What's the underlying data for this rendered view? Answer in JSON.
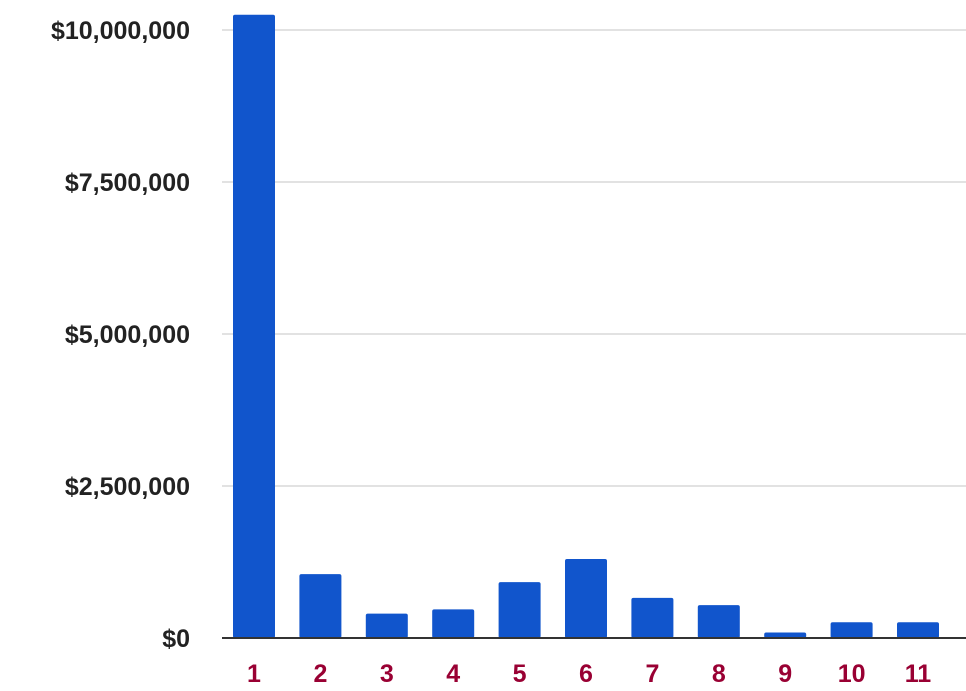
{
  "chart_data": {
    "type": "bar",
    "title": "",
    "xlabel": "",
    "ylabel": "",
    "categories": [
      "1",
      "2",
      "3",
      "4",
      "5",
      "6",
      "7",
      "8",
      "9",
      "10",
      "11"
    ],
    "values": [
      10250000,
      1050000,
      400000,
      470000,
      920000,
      1300000,
      660000,
      540000,
      90000,
      260000,
      260000
    ],
    "ylim": [
      0,
      10000000
    ],
    "yticks": [
      {
        "value": 0,
        "label": "$0"
      },
      {
        "value": 2500000,
        "label": "$2,500,000"
      },
      {
        "value": 5000000,
        "label": "$5,000,000"
      },
      {
        "value": 7500000,
        "label": "$7,500,000"
      },
      {
        "value": 10000000,
        "label": "$10,000,000"
      }
    ],
    "grid": true,
    "legend": "none",
    "colors": {
      "bar": "#1155cc",
      "grid": "#d9d9d9",
      "axis": "#333333",
      "xtick": "#990033",
      "ytick": "#222222"
    }
  }
}
